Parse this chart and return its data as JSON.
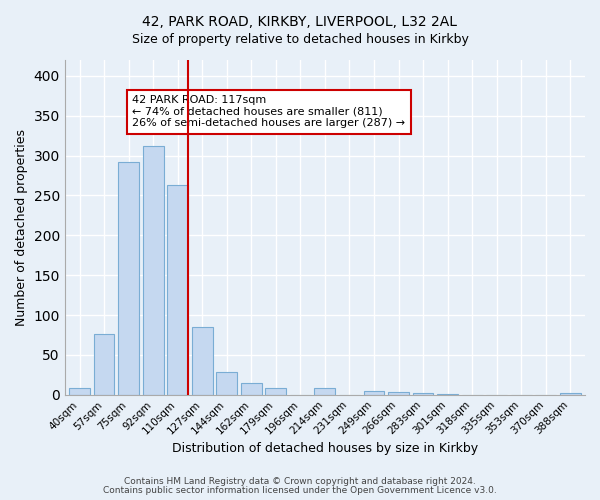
{
  "title1": "42, PARK ROAD, KIRKBY, LIVERPOOL, L32 2AL",
  "title2": "Size of property relative to detached houses in Kirkby",
  "xlabel": "Distribution of detached houses by size in Kirkby",
  "ylabel": "Number of detached properties",
  "bin_labels": [
    "40sqm",
    "57sqm",
    "75sqm",
    "92sqm",
    "110sqm",
    "127sqm",
    "144sqm",
    "162sqm",
    "179sqm",
    "196sqm",
    "214sqm",
    "231sqm",
    "249sqm",
    "266sqm",
    "283sqm",
    "301sqm",
    "318sqm",
    "335sqm",
    "353sqm",
    "370sqm",
    "388sqm"
  ],
  "bar_heights": [
    8,
    76,
    292,
    312,
    263,
    85,
    29,
    15,
    8,
    0,
    8,
    0,
    5,
    4,
    2,
    1,
    0,
    0,
    0,
    0,
    2
  ],
  "bar_color": "#c5d8f0",
  "bar_edge_color": "#7aadd4",
  "marker_bin_index": 4,
  "annotation_title": "42 PARK ROAD: 117sqm",
  "annotation_line1": "← 74% of detached houses are smaller (811)",
  "annotation_line2": "26% of semi-detached houses are larger (287) →",
  "annotation_box_color": "#ffffff",
  "annotation_box_edge": "#cc0000",
  "marker_line_color": "#cc0000",
  "ylim": [
    0,
    420
  ],
  "yticks": [
    0,
    50,
    100,
    150,
    200,
    250,
    300,
    350,
    400
  ],
  "footer1": "Contains HM Land Registry data © Crown copyright and database right 2024.",
  "footer2": "Contains public sector information licensed under the Open Government Licence v3.0.",
  "bg_color": "#e8f0f8",
  "plot_bg_color": "#e8f0f8"
}
